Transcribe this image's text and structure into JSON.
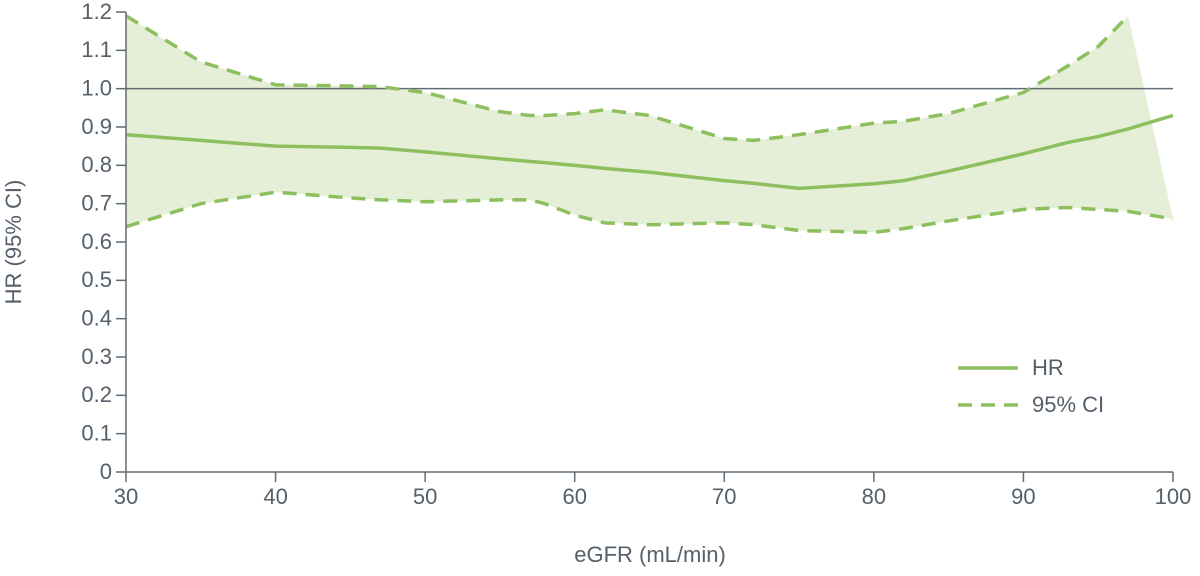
{
  "chart_data": {
    "type": "line",
    "x_label": "eGFR (mL/min)",
    "y_label": "HR (95% CI)",
    "x": [
      30,
      35,
      40,
      45,
      47,
      50,
      55,
      57,
      58,
      60,
      62,
      65,
      70,
      72,
      75,
      80,
      82,
      85,
      90,
      93,
      95,
      97,
      100
    ],
    "series": [
      {
        "name": "HR",
        "color": "#8dbf5e",
        "style": "solid",
        "values": [
          0.88,
          0.865,
          0.85,
          0.847,
          0.845,
          0.835,
          0.817,
          0.81,
          0.807,
          0.8,
          0.792,
          0.782,
          0.76,
          0.753,
          0.74,
          0.752,
          0.76,
          0.785,
          0.83,
          0.86,
          0.875,
          0.895,
          0.93
        ]
      },
      {
        "name": "95% CI",
        "color": "#8dbf5e",
        "style": "dashed",
        "band_color": "#e5efd8",
        "upper": [
          1.19,
          1.07,
          1.01,
          1.007,
          1.005,
          0.99,
          0.94,
          0.93,
          0.93,
          0.935,
          0.945,
          0.93,
          0.87,
          0.865,
          0.88,
          0.91,
          0.915,
          0.935,
          0.99,
          1.06,
          1.11,
          1.19,
          null
        ],
        "lower": [
          0.64,
          0.7,
          0.73,
          0.715,
          0.71,
          0.705,
          0.71,
          0.71,
          0.7,
          0.67,
          0.65,
          0.645,
          0.65,
          0.645,
          0.63,
          0.625,
          0.635,
          0.655,
          0.685,
          0.69,
          0.685,
          0.68,
          0.66
        ]
      }
    ],
    "reference_line": {
      "value": 1,
      "color": "#5f6b75"
    },
    "xlim": [
      30,
      100
    ],
    "xticks": [
      30,
      40,
      50,
      60,
      70,
      80,
      90,
      100
    ],
    "ylim": [
      0,
      1.2
    ],
    "yticks": [
      0,
      0.1,
      0.2,
      0.3,
      0.4,
      0.5,
      0.6,
      0.7,
      0.8,
      0.9,
      {
        "value": 1,
        "label": "1.0"
      },
      1.1,
      1.2
    ],
    "legend": "lower-right"
  }
}
